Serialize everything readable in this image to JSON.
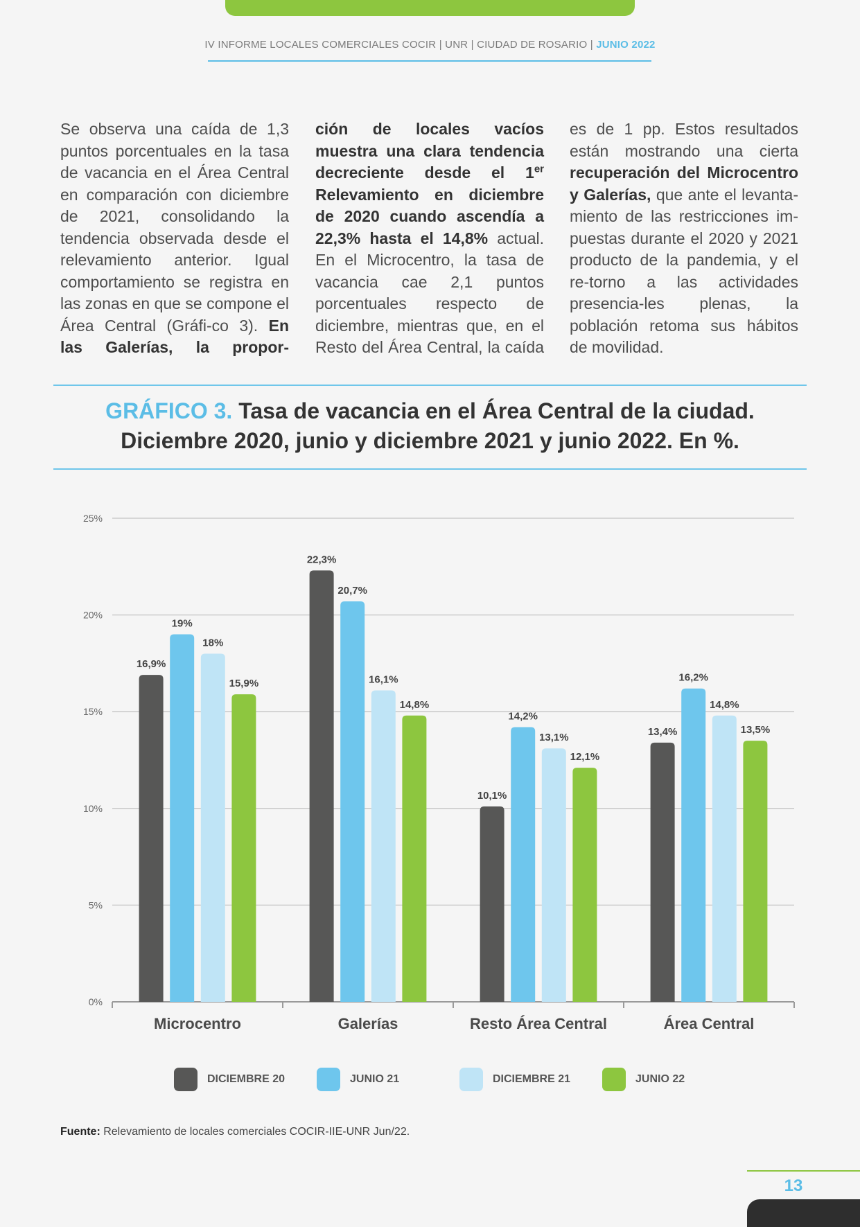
{
  "header": {
    "text": "IV INFORME LOCALES COMERCIALES COCIR | UNR | CIUDAD DE ROSARIO | ",
    "accent": "JUNIO 2022"
  },
  "body": {
    "col1": {
      "p1": "Se observa una caída de 1,3 puntos porcentuales en la tasa de vacancia en el Área Central en comparación con diciembre de 2021, consolidando la tendencia observada desde el relevamiento anterior. Igual comportamiento se registra en las zonas en que se compone el Área Central (Gráfi-co 3). ",
      "b1": "En las Galerías, la propor-"
    },
    "col2": {
      "b1": "ción de locales vacíos muestra una clara tendencia decreciente desde el 1",
      "b1_sup": "er",
      "b2": " Relevamiento en diciembre de 2020 cuando ascendía a 22,3% hasta el 14,8%",
      "p1": " actual. En el Microcentro, la tasa de vacancia cae 2,1 puntos porcentuales respecto de diciembre, mientras que, en el Resto del Área Central, la caída"
    },
    "col3": {
      "p1": "es de 1 pp. Estos resultados están mostrando una cierta ",
      "b1": "recuperación del Microcentro y Galerías,",
      "p2": " que ante el levanta-miento de las restricciones im-puestas durante el 2020 y 2021 producto de la pandemia, y el re-torno a las actividades presencia-les plenas, la población retoma sus hábitos de movilidad."
    }
  },
  "chart_title": {
    "label": "GRÁFICO 3.",
    "line1": " Tasa de vacancia en el Área Central de la ciudad.",
    "line2": "Diciembre 2020, junio y diciembre 2021 y junio 2022. En %."
  },
  "chart_data": {
    "type": "bar",
    "categories": [
      "Microcentro",
      "Galerías",
      "Resto Área Central",
      "Área Central"
    ],
    "series": [
      {
        "name": "DICIEMBRE 20",
        "color": "#575756",
        "values": [
          16.9,
          22.3,
          10.1,
          13.4
        ],
        "labels": [
          "16,9%",
          "22,3%",
          "10,1%",
          "13,4%"
        ]
      },
      {
        "name": "JUNIO 21",
        "color": "#6ec6ed",
        "values": [
          19,
          20.7,
          14.2,
          16.2
        ],
        "labels": [
          "19%",
          "20,7%",
          "14,2%",
          "16,2%"
        ]
      },
      {
        "name": "DICIEMBRE 21",
        "color": "#bfe4f6",
        "values": [
          18,
          16.1,
          13.1,
          14.8
        ],
        "labels": [
          "18%",
          "16,1%",
          "13,1%",
          "14,8%"
        ]
      },
      {
        "name": "JUNIO 22",
        "color": "#8dc63f",
        "values": [
          15.9,
          14.8,
          12.1,
          13.5
        ],
        "labels": [
          "15,9%",
          "14,8%",
          "12,1%",
          "13,5%"
        ]
      }
    ],
    "yticks": [
      0,
      5,
      10,
      15,
      20,
      25
    ],
    "ytick_labels": [
      "0%",
      "5%",
      "10%",
      "15%",
      "20%",
      "25%"
    ],
    "ylim": [
      0,
      25
    ],
    "grid": true,
    "legend_position": "bottom"
  },
  "source": {
    "label": "Fuente:",
    "text": " Relevamiento de locales comerciales COCIR-IIE-UNR Jun/22."
  },
  "page_number": "13"
}
